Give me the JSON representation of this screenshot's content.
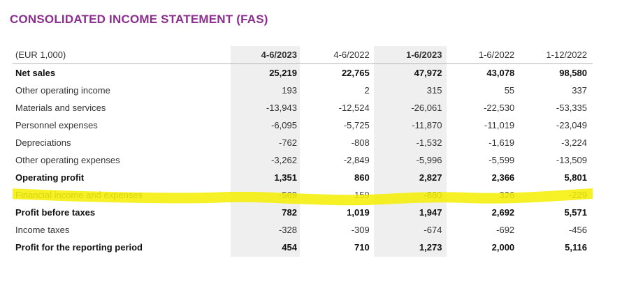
{
  "title": "CONSOLIDATED INCOME STATEMENT (FAS)",
  "table": {
    "unit_label": "(EUR 1,000)",
    "columns": [
      "4-6/2023",
      "4-6/2022",
      "1-6/2023",
      "1-6/2022",
      "1-12/2022"
    ],
    "rows": [
      {
        "label": "Net sales",
        "bold": true,
        "values": [
          "25,219",
          "22,765",
          "47,972",
          "43,078",
          "98,580"
        ]
      },
      {
        "label": "Other operating income",
        "bold": false,
        "values": [
          "193",
          "2",
          "315",
          "55",
          "337"
        ]
      },
      {
        "label": "Materials and services",
        "bold": false,
        "values": [
          "-13,943",
          "-12,524",
          "-26,061",
          "-22,530",
          "-53,335"
        ]
      },
      {
        "label": "Personnel expenses",
        "bold": false,
        "values": [
          "-6,095",
          "-5,725",
          "-11,870",
          "-11,019",
          "-23,049"
        ]
      },
      {
        "label": "Depreciations",
        "bold": false,
        "values": [
          "-762",
          "-808",
          "-1,532",
          "-1,619",
          "-3,224"
        ]
      },
      {
        "label": "Other operating expenses",
        "bold": false,
        "values": [
          "-3,262",
          "-2,849",
          "-5,996",
          "-5,599",
          "-13,509"
        ]
      },
      {
        "label": "Operating profit",
        "bold": true,
        "values": [
          "1,351",
          "860",
          "2,827",
          "2,366",
          "5,801"
        ]
      },
      {
        "label": "Financial income and expenses",
        "bold": false,
        "highlighted": true,
        "values": [
          "-569",
          "159",
          "-880",
          "326",
          "-229"
        ]
      },
      {
        "label": "Profit before taxes",
        "bold": true,
        "values": [
          "782",
          "1,019",
          "1,947",
          "2,692",
          "5,571"
        ]
      },
      {
        "label": "Income taxes",
        "bold": false,
        "values": [
          "-328",
          "-309",
          "-674",
          "-692",
          "-456"
        ]
      },
      {
        "label": "Profit for the reporting period",
        "bold": true,
        "values": [
          "454",
          "710",
          "1,273",
          "2,000",
          "5,116"
        ]
      }
    ]
  },
  "colors": {
    "title": "#8a2f8e",
    "column_shade": "#efefef",
    "highlighter": "#f5ef00"
  }
}
